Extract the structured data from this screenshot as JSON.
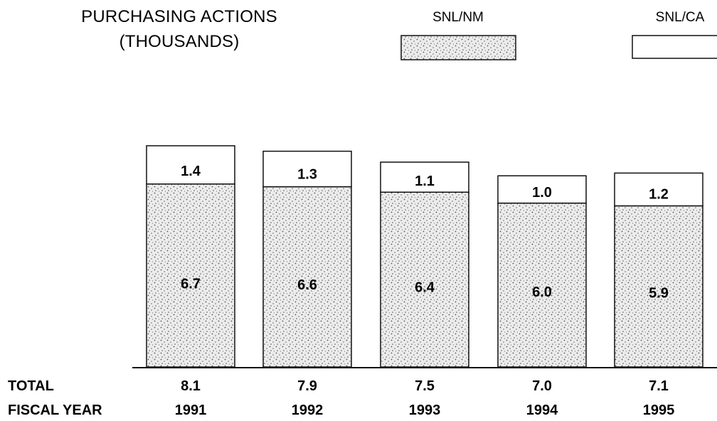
{
  "chart_data": {
    "type": "bar",
    "stacked": true,
    "title": [
      "PURCHASING ACTIONS",
      "(THOUSANDS)"
    ],
    "categories": [
      "1991",
      "1992",
      "1993",
      "1994",
      "1995"
    ],
    "series": [
      {
        "name": "SNL/NM",
        "values": [
          6.7,
          6.6,
          6.4,
          6.0,
          5.9
        ],
        "fill": "stippled"
      },
      {
        "name": "SNL/CA",
        "values": [
          1.4,
          1.3,
          1.1,
          1.0,
          1.2
        ],
        "fill": "white"
      }
    ],
    "totals": [
      8.1,
      7.9,
      7.5,
      7.0,
      7.1
    ],
    "row_labels": {
      "total": "TOTAL",
      "fiscal_year": "FISCAL YEAR"
    },
    "legend_position": "top-right",
    "grid": false
  },
  "colors": {
    "ink": "#111111",
    "stipple_bg": "#e8e8e8",
    "stipple_dot": "#555555",
    "background": "#ffffff"
  }
}
